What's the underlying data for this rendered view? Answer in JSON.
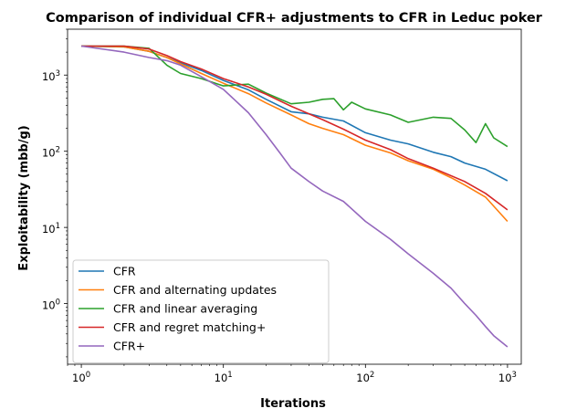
{
  "chart_data": {
    "type": "line",
    "title": "Comparison of individual CFR+ adjustments to CFR in Leduc poker",
    "xlabel": "Iterations",
    "ylabel": "Exploitability (mbb/g)",
    "xscale": "log",
    "yscale": "log",
    "xlim": [
      0.8,
      1250
    ],
    "ylim": [
      0.16,
      4000
    ],
    "grid": false,
    "legend_position": "lower-left",
    "x_ticks": [
      {
        "value": 1,
        "base": "10",
        "exp": "0"
      },
      {
        "value": 10,
        "base": "10",
        "exp": "1"
      },
      {
        "value": 100,
        "base": "10",
        "exp": "2"
      },
      {
        "value": 1000,
        "base": "10",
        "exp": "3"
      }
    ],
    "y_ticks": [
      {
        "value": 1,
        "base": "10",
        "exp": "0"
      },
      {
        "value": 10,
        "base": "10",
        "exp": "1"
      },
      {
        "value": 100,
        "base": "10",
        "exp": "2"
      },
      {
        "value": 1000,
        "base": "10",
        "exp": "3"
      }
    ],
    "series": [
      {
        "name": "CFR",
        "color": "#1f77b4",
        "points": [
          [
            1,
            2400
          ],
          [
            2,
            2350
          ],
          [
            3,
            2050
          ],
          [
            4,
            1700
          ],
          [
            5,
            1450
          ],
          [
            7,
            1150
          ],
          [
            10,
            850
          ],
          [
            15,
            640
          ],
          [
            20,
            480
          ],
          [
            30,
            330
          ],
          [
            40,
            310
          ],
          [
            50,
            280
          ],
          [
            70,
            250
          ],
          [
            100,
            175
          ],
          [
            150,
            140
          ],
          [
            200,
            125
          ],
          [
            300,
            97
          ],
          [
            400,
            85
          ],
          [
            500,
            70
          ],
          [
            700,
            58
          ],
          [
            1000,
            41
          ]
        ]
      },
      {
        "name": "CFR and alternating updates",
        "color": "#ff7f0e",
        "points": [
          [
            1,
            2400
          ],
          [
            2,
            2350
          ],
          [
            3,
            2050
          ],
          [
            4,
            1700
          ],
          [
            5,
            1400
          ],
          [
            7,
            1050
          ],
          [
            10,
            780
          ],
          [
            15,
            570
          ],
          [
            20,
            430
          ],
          [
            30,
            300
          ],
          [
            40,
            230
          ],
          [
            50,
            200
          ],
          [
            70,
            165
          ],
          [
            100,
            120
          ],
          [
            150,
            95
          ],
          [
            200,
            75
          ],
          [
            300,
            58
          ],
          [
            400,
            45
          ],
          [
            500,
            36
          ],
          [
            700,
            25
          ],
          [
            1000,
            12
          ]
        ]
      },
      {
        "name": "CFR and linear averaging",
        "color": "#2ca02c",
        "points": [
          [
            1,
            2400
          ],
          [
            2,
            2400
          ],
          [
            3,
            2250
          ],
          [
            4,
            1350
          ],
          [
            5,
            1050
          ],
          [
            7,
            900
          ],
          [
            10,
            720
          ],
          [
            15,
            760
          ],
          [
            20,
            580
          ],
          [
            30,
            420
          ],
          [
            40,
            440
          ],
          [
            50,
            480
          ],
          [
            60,
            490
          ],
          [
            70,
            350
          ],
          [
            80,
            440
          ],
          [
            100,
            360
          ],
          [
            150,
            300
          ],
          [
            200,
            240
          ],
          [
            300,
            280
          ],
          [
            400,
            270
          ],
          [
            500,
            190
          ],
          [
            600,
            130
          ],
          [
            700,
            230
          ],
          [
            800,
            150
          ],
          [
            1000,
            115
          ]
        ]
      },
      {
        "name": "CFR and regret matching+",
        "color": "#d62728",
        "points": [
          [
            1,
            2400
          ],
          [
            2,
            2400
          ],
          [
            3,
            2200
          ],
          [
            4,
            1800
          ],
          [
            5,
            1500
          ],
          [
            7,
            1200
          ],
          [
            10,
            900
          ],
          [
            15,
            700
          ],
          [
            20,
            560
          ],
          [
            30,
            390
          ],
          [
            50,
            260
          ],
          [
            70,
            195
          ],
          [
            100,
            140
          ],
          [
            150,
            105
          ],
          [
            200,
            80
          ],
          [
            300,
            60
          ],
          [
            500,
            40
          ],
          [
            700,
            28
          ],
          [
            1000,
            17
          ]
        ]
      },
      {
        "name": "CFR+",
        "color": "#9467bd",
        "points": [
          [
            1,
            2400
          ],
          [
            2,
            2000
          ],
          [
            3,
            1700
          ],
          [
            4,
            1550
          ],
          [
            5,
            1350
          ],
          [
            7,
            950
          ],
          [
            10,
            650
          ],
          [
            15,
            320
          ],
          [
            20,
            165
          ],
          [
            25,
            95
          ],
          [
            30,
            60
          ],
          [
            40,
            40
          ],
          [
            50,
            30
          ],
          [
            70,
            22
          ],
          [
            100,
            12
          ],
          [
            150,
            7
          ],
          [
            200,
            4.5
          ],
          [
            300,
            2.5
          ],
          [
            400,
            1.6
          ],
          [
            500,
            1.0
          ],
          [
            600,
            0.7
          ],
          [
            700,
            0.5
          ],
          [
            800,
            0.38
          ],
          [
            1000,
            0.27
          ]
        ]
      }
    ]
  }
}
